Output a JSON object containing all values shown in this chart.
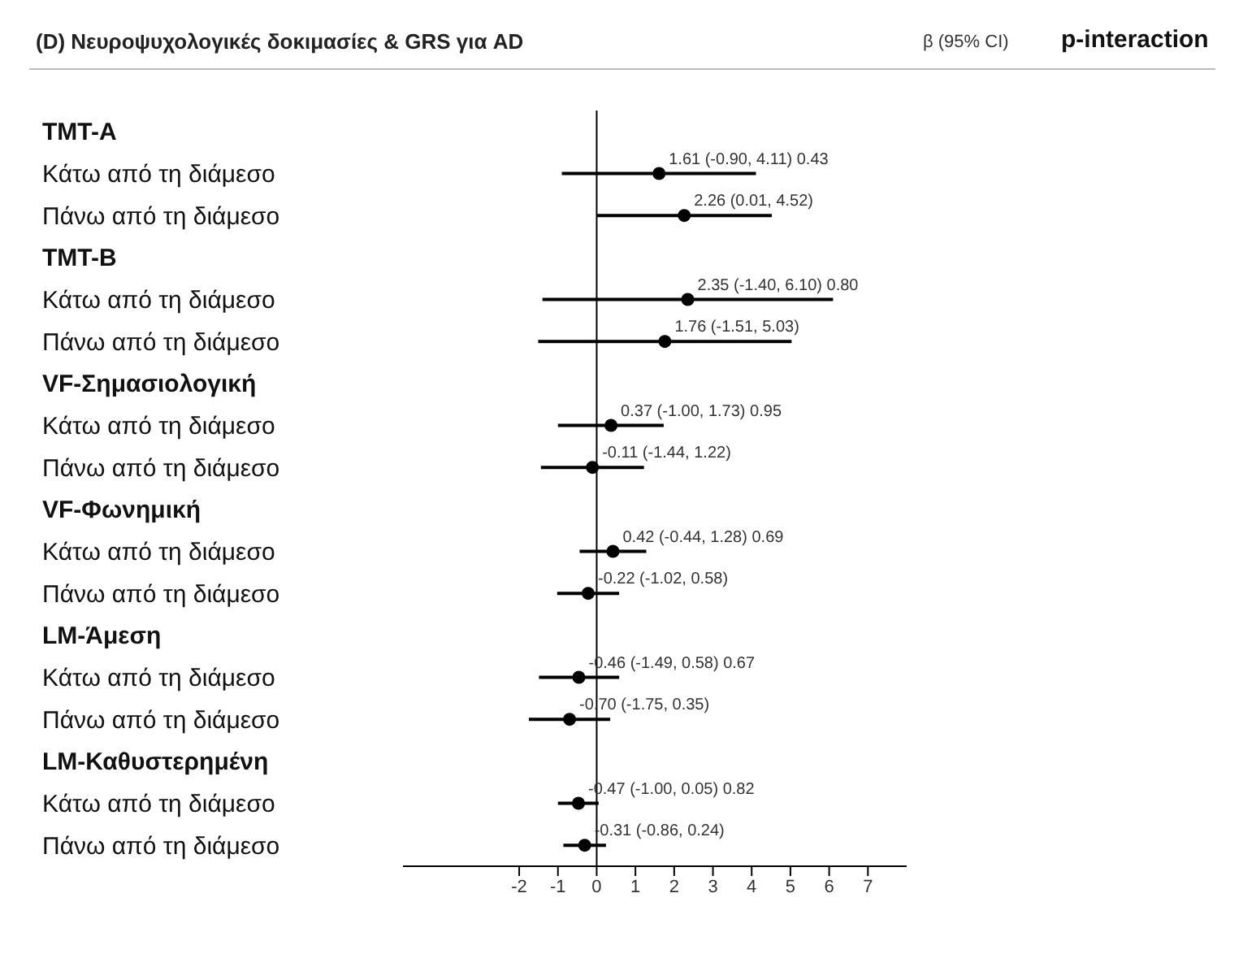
{
  "chart_data": {
    "type": "scatter",
    "orientation": "horizontal",
    "title": "(D) Νευροψυχολογικές δοκιμασίες & GRS για AD",
    "annotations": [
      "β (95% CI)",
      "p-interaction"
    ],
    "categories": [
      "TMT-A",
      "Κάτω από τη διάμεσο",
      "Πάνω από τη διάμεσο",
      "TMT-B",
      "Κάτω από τη διάμεσο",
      "Πάνω από τη διάμεσο",
      "VF-Σημασιολογική",
      "Κάτω από τη διάμεσο",
      "Πάνω από τη διάμεσο",
      "VF-Φωνημική",
      "Κάτω από τη διάμεσο",
      "Πάνω από τη διάμεσο",
      "LM-Άμεση",
      "Κάτω από τη διάμεσο",
      "Πάνω από τη διάμεσο",
      "LM-Καθυστερημένη",
      "Κάτω από τη διάμεσο",
      "Πάνω από τη διάμεσο"
    ],
    "series": [
      {
        "color": "#000000",
        "values": [
          null,
          1.61,
          2.26,
          null,
          2.35,
          1.76,
          null,
          0.37,
          -0.11,
          null,
          0.42,
          -0.22,
          null,
          -0.46,
          -0.7,
          null,
          -0.47,
          -0.31
        ],
        "errors": [
          null,
          [
            -0.9,
            4.11
          ],
          [
            0.01,
            4.52
          ],
          null,
          [
            -1.4,
            6.1
          ],
          [
            -1.51,
            5.03
          ],
          null,
          [
            -1.0,
            1.73
          ],
          [
            -1.44,
            1.22
          ],
          null,
          [
            -0.44,
            1.28
          ],
          [
            -1.02,
            0.58
          ],
          null,
          [
            -1.49,
            0.58
          ],
          [
            -1.75,
            0.35
          ],
          null,
          [
            -1.0,
            0.05
          ],
          [
            -0.86,
            0.24
          ]
        ],
        "value_labels": [
          null,
          "1.61 (-0.90, 4.11)  0.43",
          "2.26 (0.01, 4.52)",
          null,
          "2.35 (-1.40, 6.10)  0.80",
          "1.76 (-1.51, 5.03)",
          null,
          "0.37 (-1.00, 1.73)  0.95",
          "-0.11 (-1.44, 1.22)",
          null,
          "0.42 (-0.44, 1.28)  0.69",
          "-0.22 (-1.02, 0.58)",
          null,
          "-0.46 (-1.49, 0.58)  0.67",
          "-0.70 (-1.75, 0.35)",
          null,
          "-0.47 (-1.00, 0.05)  0.82",
          "-0.31 (-0.86, 0.24)"
        ]
      }
    ],
    "xlim": [
      -5,
      8
    ],
    "xticks": [
      -2,
      -1,
      0,
      1,
      2,
      3,
      4,
      5,
      6,
      7
    ],
    "ref_lines": [
      {
        "axis": "x",
        "value": 0,
        "color": "#000000"
      }
    ],
    "marker": "circle",
    "grid": false,
    "legend": false
  }
}
